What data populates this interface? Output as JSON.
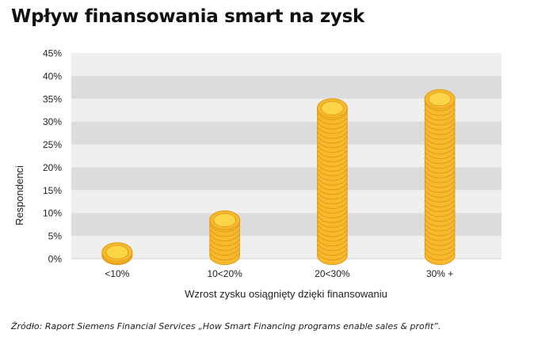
{
  "title": "Wpływ finansowania smart na zysk",
  "source": "Źródło: Raport Siemens Financial Services „How Smart Financing programs enable sales & profit”.",
  "colors": {
    "band_dark": "#dcdcdc",
    "band_light": "#efefef",
    "coin_fill": "#f7b92e",
    "coin_edge": "#e09b12",
    "coin_top": "#fcd447"
  },
  "chart_data": {
    "type": "bar",
    "xlabel": "Wzrost zysku osiągnięty dzięki finansowaniu",
    "ylabel": "Respondenci",
    "categories": [
      "<10%",
      "10<20%",
      "20<30%",
      "30% +"
    ],
    "values": [
      3.5,
      10.5,
      35,
      37
    ],
    "ylim": [
      0,
      45
    ],
    "yticks": [
      "0%",
      "5%",
      "10%",
      "15%",
      "20%",
      "25%",
      "30%",
      "35%",
      "40%",
      "45%"
    ],
    "grid": true
  }
}
